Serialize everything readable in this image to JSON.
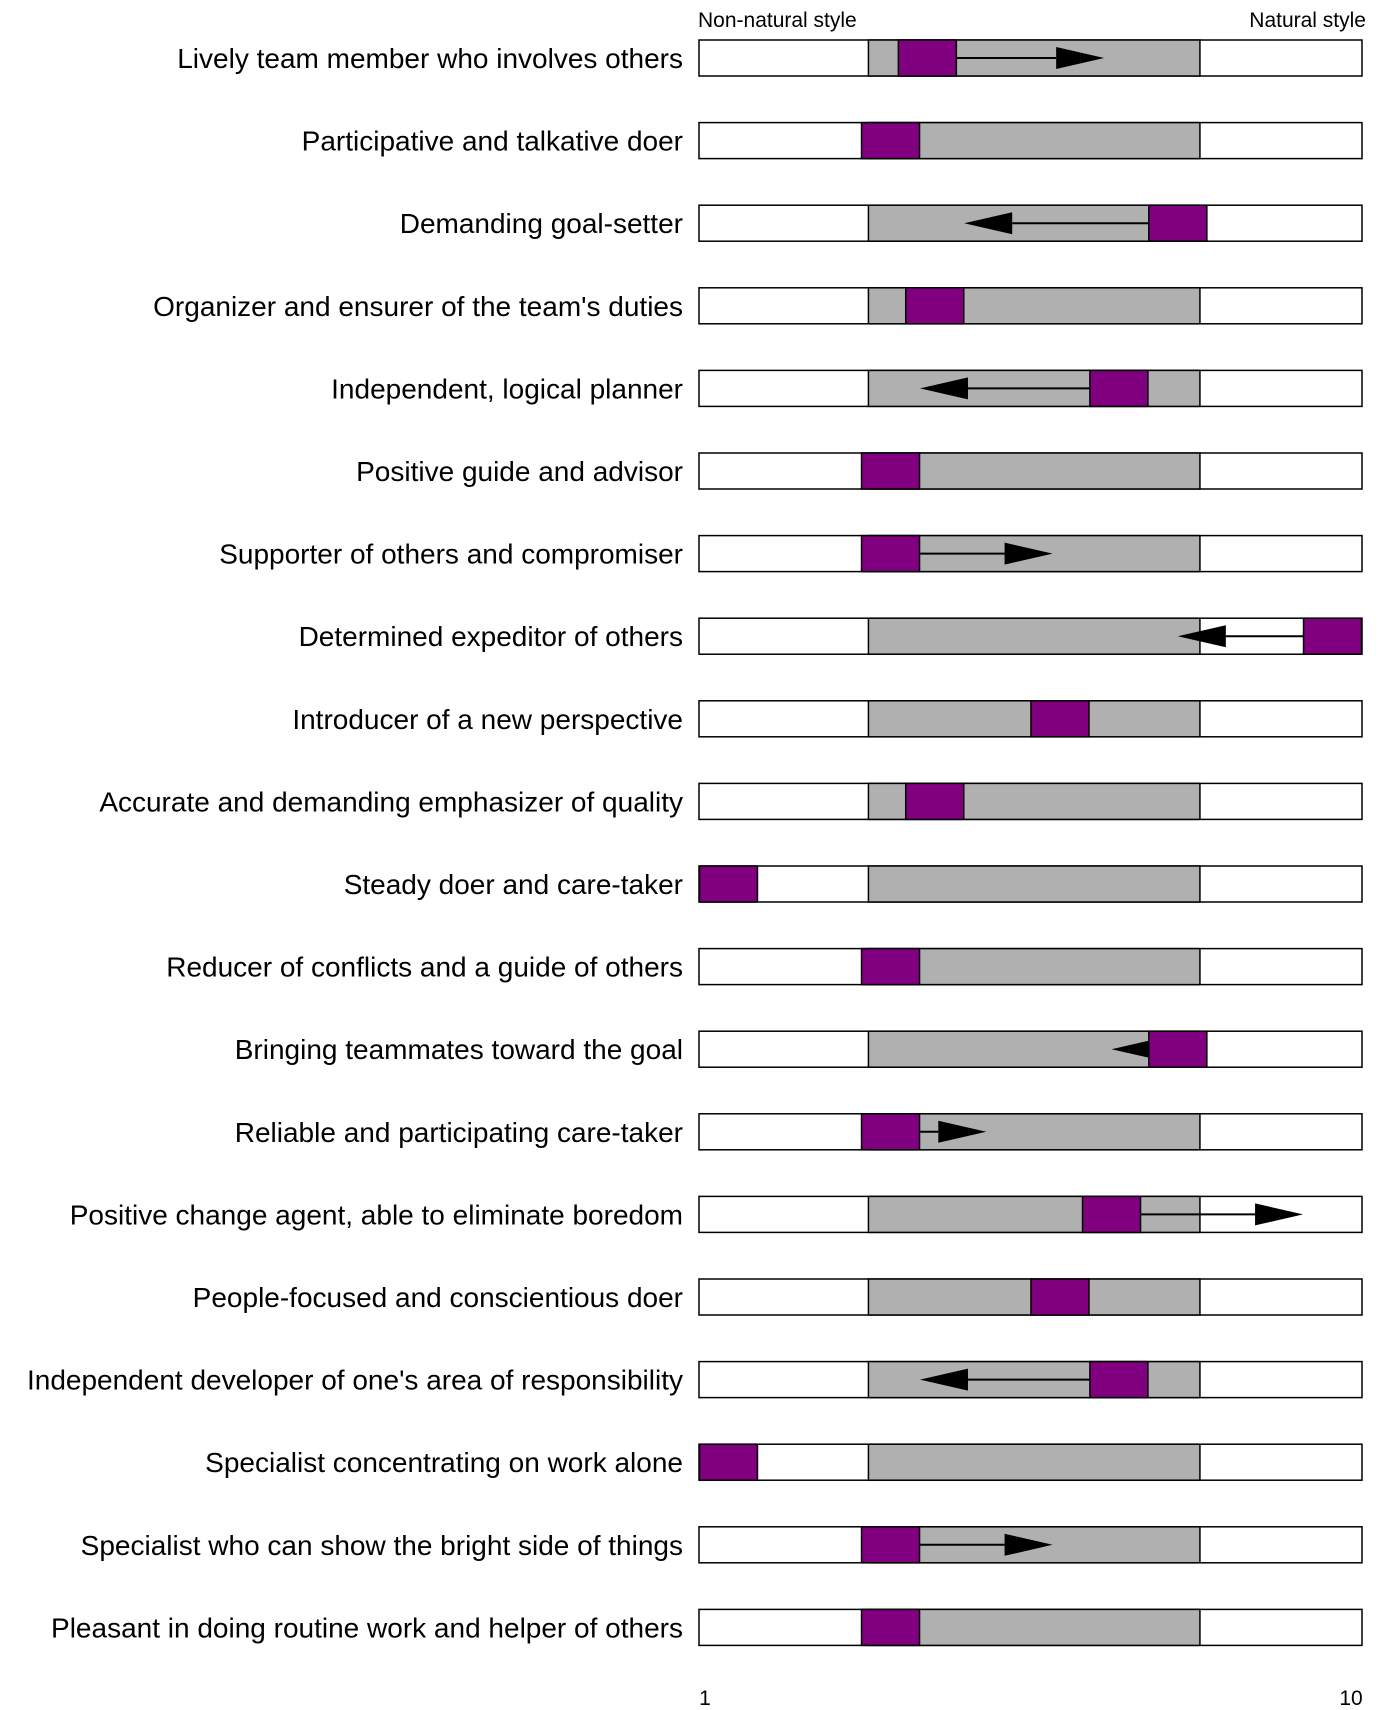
{
  "chart_data": {
    "type": "range-bar",
    "left_label": "Non-natural style",
    "right_label": "Natural style",
    "x_ticks": [
      "1",
      "10"
    ],
    "xlim": [
      1,
      10
    ],
    "colors": {
      "range": "#b0b0b0",
      "marker": "#800080",
      "border": "#000000",
      "arrow": "#000000",
      "track": "#ffffff"
    },
    "rows": [
      {
        "label": "Lively team member who involves others",
        "range": [
          3.3,
          7.8
        ],
        "marker": 4.1,
        "arrow_to": 6.5
      },
      {
        "label": "Participative and talkative doer",
        "range": [
          3.3,
          7.8
        ],
        "marker": 3.6,
        "arrow_to": null
      },
      {
        "label": "Demanding goal-setter",
        "range": [
          3.3,
          7.8
        ],
        "marker": 7.5,
        "arrow_to": 4.6
      },
      {
        "label": "Organizer and ensurer of the team's duties",
        "range": [
          3.3,
          7.8
        ],
        "marker": 4.2,
        "arrow_to": null
      },
      {
        "label": "Independent, logical planner",
        "range": [
          3.3,
          7.8
        ],
        "marker": 6.7,
        "arrow_to": 4.0
      },
      {
        "label": "Positive guide and advisor",
        "range": [
          3.3,
          7.8
        ],
        "marker": 3.6,
        "arrow_to": null
      },
      {
        "label": "Supporter of others and compromiser",
        "range": [
          3.3,
          7.8
        ],
        "marker": 3.6,
        "arrow_to": 5.8
      },
      {
        "label": "Determined expeditor of others",
        "range": [
          3.3,
          7.8
        ],
        "marker": 9.6,
        "arrow_to": 7.5
      },
      {
        "label": "Introducer of a new perspective",
        "range": [
          3.3,
          7.8
        ],
        "marker": 5.9,
        "arrow_to": null
      },
      {
        "label": "Accurate and demanding emphasizer of quality",
        "range": [
          3.3,
          7.8
        ],
        "marker": 4.2,
        "arrow_to": null
      },
      {
        "label": "Steady doer and care-taker",
        "range": [
          3.3,
          7.8
        ],
        "marker": 1.4,
        "arrow_to": null
      },
      {
        "label": "Reducer of conflicts and a guide of others",
        "range": [
          3.3,
          7.8
        ],
        "marker": 3.6,
        "arrow_to": null
      },
      {
        "label": "Bringing teammates toward the goal",
        "range": [
          3.3,
          7.8
        ],
        "marker": 7.5,
        "arrow_to": 6.6
      },
      {
        "label": "Reliable and participating care-taker",
        "range": [
          3.3,
          7.8
        ],
        "marker": 3.6,
        "arrow_to": 4.9
      },
      {
        "label": "Positive change agent, able to eliminate boredom",
        "range": [
          3.3,
          7.8
        ],
        "marker": 6.6,
        "arrow_to": 9.2
      },
      {
        "label": "People-focused and conscientious doer",
        "range": [
          3.3,
          7.8
        ],
        "marker": 5.9,
        "arrow_to": null
      },
      {
        "label": "Independent developer of one's area of responsibility",
        "range": [
          3.3,
          7.8
        ],
        "marker": 6.7,
        "arrow_to": 4.0
      },
      {
        "label": "Specialist concentrating on work alone",
        "range": [
          3.3,
          7.8
        ],
        "marker": 1.4,
        "arrow_to": null
      },
      {
        "label": "Specialist who can show the bright side of things",
        "range": [
          3.3,
          7.8
        ],
        "marker": 3.6,
        "arrow_to": 5.8
      },
      {
        "label": "Pleasant in doing routine work and helper of others",
        "range": [
          3.3,
          7.8
        ],
        "marker": 3.6,
        "arrow_to": null
      }
    ]
  }
}
